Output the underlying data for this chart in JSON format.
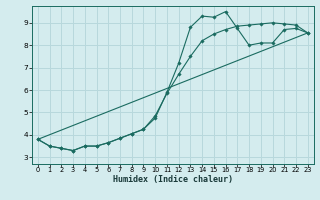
{
  "xlabel": "Humidex (Indice chaleur)",
  "ylabel": "",
  "bg_color": "#d4ecee",
  "grid_color": "#b8d8dc",
  "line_color": "#1a6b60",
  "xlim": [
    -0.5,
    23.5
  ],
  "ylim": [
    2.7,
    9.75
  ],
  "xticks": [
    0,
    1,
    2,
    3,
    4,
    5,
    6,
    7,
    8,
    9,
    10,
    11,
    12,
    13,
    14,
    15,
    16,
    17,
    18,
    19,
    20,
    21,
    22,
    23
  ],
  "yticks": [
    3,
    4,
    5,
    6,
    7,
    8,
    9
  ],
  "line1_x": [
    0,
    1,
    2,
    3,
    4,
    5,
    6,
    7,
    8,
    9,
    10,
    11,
    12,
    13,
    14,
    15,
    16,
    17,
    18,
    19,
    20,
    21,
    22,
    23
  ],
  "line1_y": [
    3.8,
    3.5,
    3.4,
    3.3,
    3.5,
    3.5,
    3.65,
    3.85,
    4.05,
    4.25,
    4.75,
    5.9,
    7.2,
    8.8,
    9.3,
    9.25,
    9.5,
    8.75,
    8.0,
    8.1,
    8.1,
    8.7,
    8.75,
    8.55
  ],
  "line2_x": [
    0,
    1,
    2,
    3,
    4,
    5,
    6,
    7,
    8,
    9,
    10,
    11,
    12,
    13,
    14,
    15,
    16,
    17,
    18,
    19,
    20,
    21,
    22,
    23
  ],
  "line2_y": [
    3.8,
    3.5,
    3.4,
    3.3,
    3.5,
    3.5,
    3.65,
    3.85,
    4.05,
    4.25,
    4.85,
    5.85,
    6.7,
    7.5,
    8.2,
    8.5,
    8.7,
    8.85,
    8.9,
    8.95,
    9.0,
    8.95,
    8.9,
    8.55
  ],
  "line3_x": [
    0,
    23
  ],
  "line3_y": [
    3.8,
    8.55
  ],
  "xlabel_fontsize": 6.0,
  "tick_fontsize": 4.8
}
